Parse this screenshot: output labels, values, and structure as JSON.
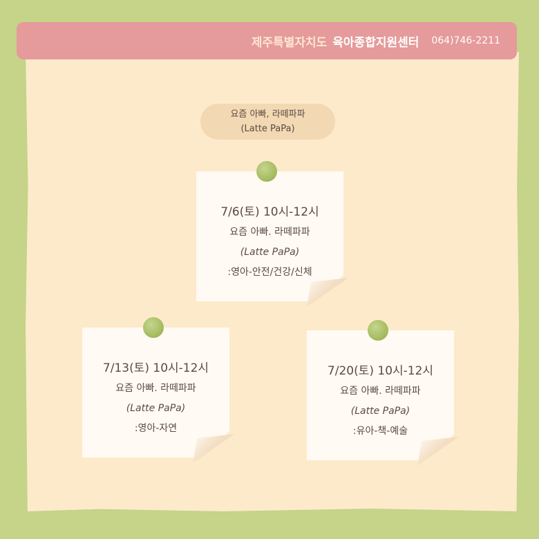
{
  "banner": {
    "org": "제주특별자치도",
    "center": "육아종합지원센터",
    "phone": "064)746-2211"
  },
  "program": {
    "title_line1": "요즘 아빠, 라떼파파",
    "title_line2": "(Latte PaPa)"
  },
  "notes": [
    {
      "date": "7/6(토) 10시-12시",
      "name": "요즘 아빠. 라떼파파",
      "english": "(Latte PaPa)",
      "topic": ":영아-안전/건강/신체"
    },
    {
      "date": "7/13(토) 10시-12시",
      "name": "요즘 아빠. 라떼파파",
      "english": "(Latte PaPa)",
      "topic": ":영아-자연"
    },
    {
      "date": "7/20(토) 10시-12시",
      "name": "요즘 아빠. 라떼파파",
      "english": "(Latte PaPa)",
      "topic": ":유아-책-예술"
    }
  ],
  "colors": {
    "background": "#c5d488",
    "paper": "#fdeacb",
    "banner": "#e59a9b",
    "pin": "#a7bd62",
    "text": "#5a4a42"
  }
}
